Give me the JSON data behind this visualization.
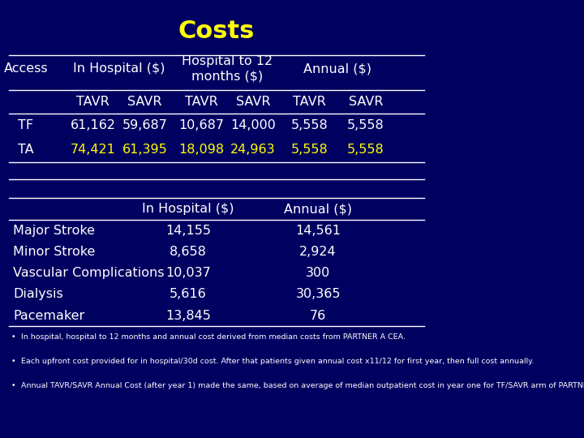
{
  "title": "Costs",
  "title_color": "#FFFF00",
  "bg_color": "#000060",
  "text_color": "#FFFFFF",
  "yellow_color": "#FFFF00",
  "title_fontsize": 22,
  "table1": {
    "rows": [
      {
        "access": "TF",
        "values": [
          "61,162",
          "59,687",
          "10,687",
          "14,000",
          "5,558",
          "5,558"
        ],
        "yellow": false
      },
      {
        "access": "TA",
        "values": [
          "74,421",
          "61,395",
          "18,098",
          "24,963",
          "5,558",
          "5,558"
        ],
        "yellow": true
      }
    ]
  },
  "table2": {
    "rows": [
      [
        "Major Stroke",
        "14,155",
        "14,561"
      ],
      [
        "Minor Stroke",
        "8,658",
        "2,924"
      ],
      [
        "Vascular Complications",
        "10,037",
        "300"
      ],
      [
        "Dialysis",
        "5,616",
        "30,365"
      ],
      [
        "Pacemaker",
        "13,845",
        "76"
      ]
    ]
  },
  "footnotes": [
    "In hospital, hospital to 12 months and annual cost derived from median costs from PARTNER A CEA.",
    "Each upfront cost provided for in hospital/30d cost. After that patients given annual cost x11/12 for first year, then full cost annually.",
    "Annual TAVR/SAVR Annual Cost (after year 1) made the same, based on average of median outpatient cost in year one for TF/SAVR arm of PARTNER A."
  ]
}
